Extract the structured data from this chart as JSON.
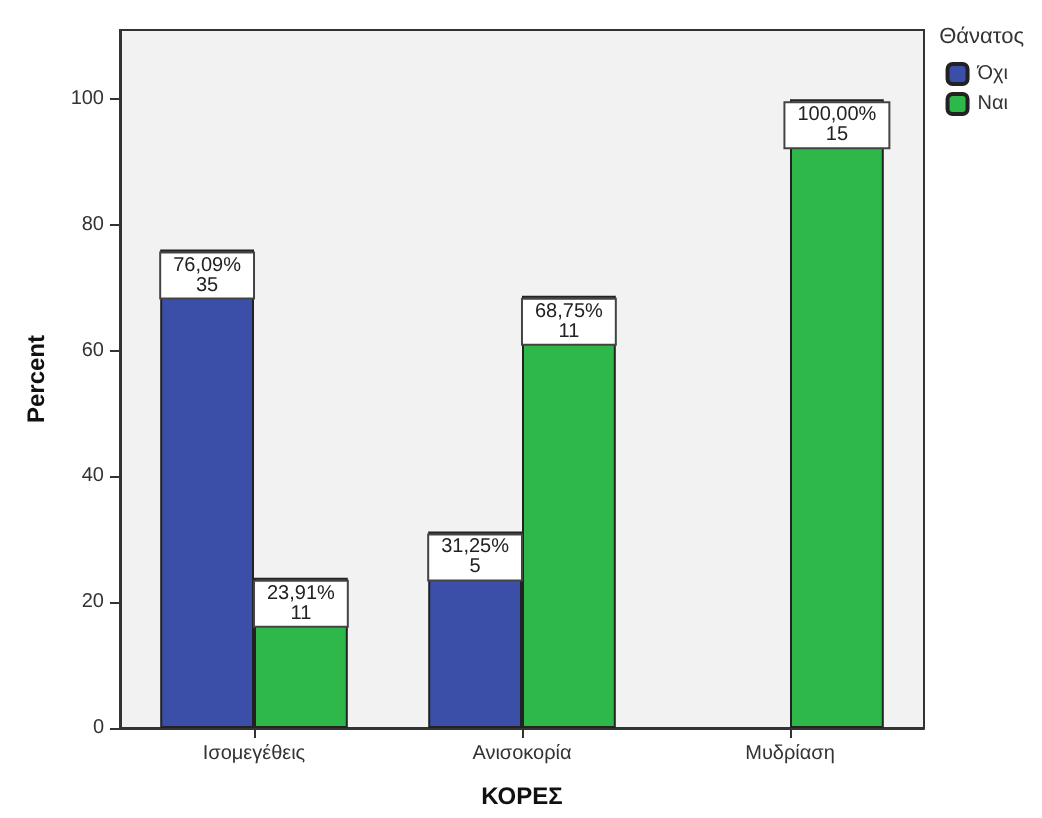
{
  "chart_data": {
    "type": "bar",
    "xlabel": "ΚΟΡΕΣ",
    "ylabel": "Percent",
    "legend_title": "Θάνατος",
    "categories": [
      "Ισομεγέθεις",
      "Ανισοκορία",
      "Μυδρίαση"
    ],
    "series": [
      {
        "name": "Όχι",
        "color": "#3b4fa8",
        "values": [
          76.09,
          31.25,
          null
        ],
        "value_labels": [
          "76,09%\n35",
          "31,25%\n5",
          null
        ]
      },
      {
        "name": "Ναι",
        "color": "#2eb84a",
        "values": [
          23.91,
          68.75,
          100
        ],
        "value_labels": [
          "23,91%\n11",
          "68,75%\n11",
          "100,00%\n15"
        ]
      }
    ],
    "ylim": [
      0,
      111
    ],
    "yticks": [
      0,
      20,
      40,
      60,
      80,
      100
    ],
    "grid": false,
    "legend": "top right"
  }
}
